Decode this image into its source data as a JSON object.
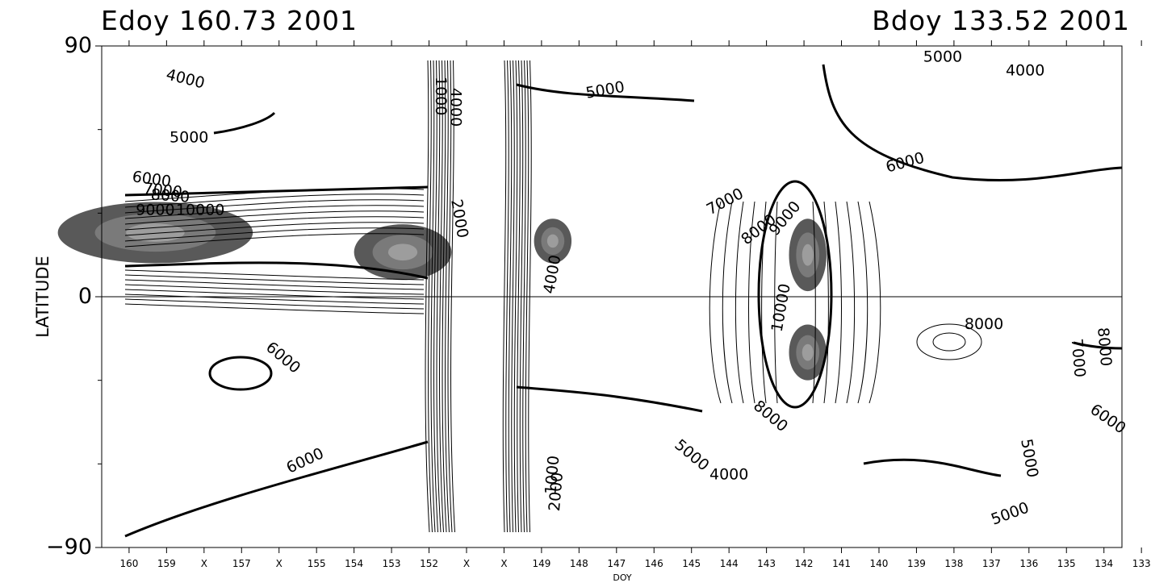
{
  "header": {
    "left_title": "Edoy 160.73 2001",
    "right_title": "Bdoy 133.52 2001"
  },
  "chart_data": {
    "type": "contour",
    "title": "",
    "xlabel": "DOY",
    "ylabel": "LATITUDE",
    "x_ticks": [
      "160",
      "159",
      "X",
      "157",
      "X",
      "155",
      "154",
      "153",
      "152",
      "X",
      "X",
      "149",
      "148",
      "147",
      "146",
      "145",
      "144",
      "143",
      "142",
      "141",
      "140",
      "139",
      "138",
      "137",
      "136",
      "135",
      "134",
      "133"
    ],
    "y_ticks": [
      "90",
      "0",
      "−90"
    ],
    "ylim": [
      -90,
      90
    ],
    "xlim": [
      160.73,
      133.52
    ],
    "contour_labels": [
      {
        "text": "4000",
        "x": 158.5,
        "y": 78,
        "rot": 14
      },
      {
        "text": "5000",
        "x": 158.4,
        "y": 57,
        "rot": 0
      },
      {
        "text": "6000",
        "x": 159.4,
        "y": 42,
        "rot": 8
      },
      {
        "text": "7000",
        "x": 159.1,
        "y": 38,
        "rot": 6
      },
      {
        "text": "8000",
        "x": 158.9,
        "y": 36,
        "rot": 4
      },
      {
        "text": "9000",
        "x": 159.3,
        "y": 31,
        "rot": 0
      },
      {
        "text": "10000",
        "x": 158.1,
        "y": 31,
        "rot": 0
      },
      {
        "text": "6000",
        "x": 155.9,
        "y": -22,
        "rot": 40
      },
      {
        "text": "6000",
        "x": 155.3,
        "y": -59,
        "rot": -25
      },
      {
        "text": "1000",
        "x": 151.7,
        "y": 72,
        "rot": 90
      },
      {
        "text": "4000",
        "x": 151.3,
        "y": 68,
        "rot": 90
      },
      {
        "text": "2000",
        "x": 151.2,
        "y": 28,
        "rot": 80
      },
      {
        "text": "1000",
        "x": 148.7,
        "y": -64,
        "rot": -85
      },
      {
        "text": "2000",
        "x": 148.6,
        "y": -70,
        "rot": -85
      },
      {
        "text": "4000",
        "x": 148.7,
        "y": 8,
        "rot": -80
      },
      {
        "text": "5000",
        "x": 147.3,
        "y": 74,
        "rot": -10
      },
      {
        "text": "7000",
        "x": 144.1,
        "y": 34,
        "rot": -28
      },
      {
        "text": "8000",
        "x": 143.2,
        "y": 24,
        "rot": -38
      },
      {
        "text": "9000",
        "x": 142.5,
        "y": 28,
        "rot": -50
      },
      {
        "text": "10000",
        "x": 142.6,
        "y": -4,
        "rot": -80
      },
      {
        "text": "6000",
        "x": 139.3,
        "y": 48,
        "rot": -15
      },
      {
        "text": "5000",
        "x": 138.3,
        "y": 86,
        "rot": 0
      },
      {
        "text": "4000",
        "x": 136.1,
        "y": 81,
        "rot": 0
      },
      {
        "text": "8000",
        "x": 137.2,
        "y": -10,
        "rot": 0
      },
      {
        "text": "7000",
        "x": 134.7,
        "y": -22,
        "rot": 85
      },
      {
        "text": "8000",
        "x": 134.0,
        "y": -18,
        "rot": 85
      },
      {
        "text": "6000",
        "x": 133.9,
        "y": -44,
        "rot": 35
      },
      {
        "text": "8000",
        "x": 142.9,
        "y": -43,
        "rot": 40
      },
      {
        "text": "5000",
        "x": 145.0,
        "y": -57,
        "rot": 40
      },
      {
        "text": "4000",
        "x": 144.0,
        "y": -64,
        "rot": 0
      },
      {
        "text": "5000",
        "x": 136.0,
        "y": -58,
        "rot": 80
      },
      {
        "text": "5000",
        "x": 136.5,
        "y": -78,
        "rot": -20
      }
    ],
    "high_regions": [
      {
        "x": 159.3,
        "y": 23,
        "w": 2.6,
        "h": 11
      },
      {
        "x": 152.7,
        "y": 16,
        "w": 1.3,
        "h": 10
      },
      {
        "x": 148.7,
        "y": 20,
        "w": 0.5,
        "h": 8
      },
      {
        "x": 141.9,
        "y": 15,
        "w": 0.5,
        "h": 13
      },
      {
        "x": 141.9,
        "y": -20,
        "w": 0.5,
        "h": 10
      }
    ],
    "grid": false
  },
  "colors": {
    "background": "#ffffff",
    "contour": "#000000",
    "shade_dark": "#595959",
    "shade_mid": "#7a7a7a",
    "shade_light": "#9d9d9d"
  }
}
